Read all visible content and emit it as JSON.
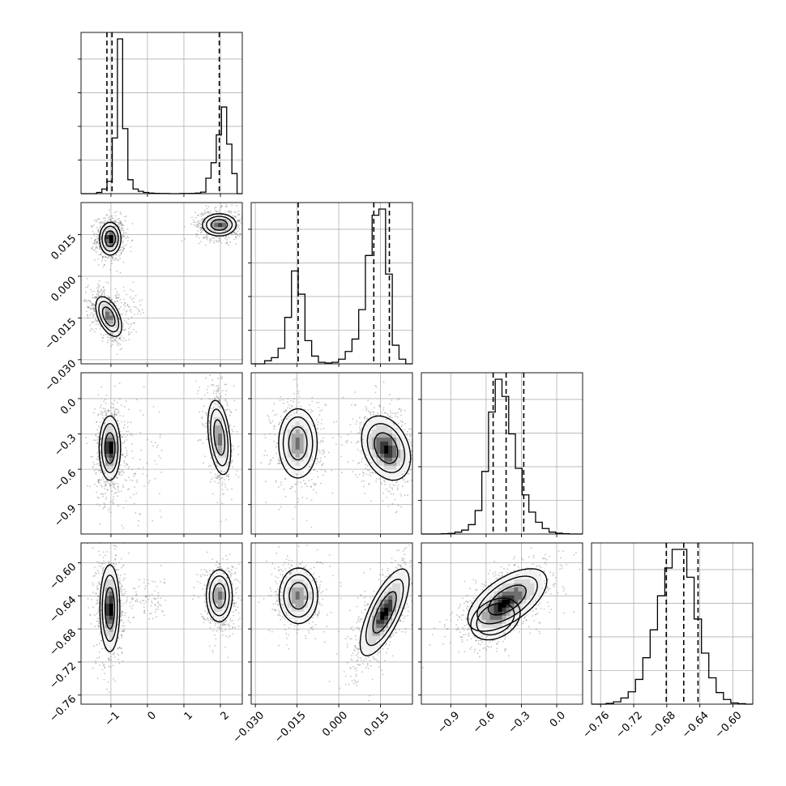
{
  "colors": {
    "ink": "#000000",
    "grid": "#b0b0b0",
    "background": "#ffffff",
    "shade_ramp": [
      "#f2f2f2",
      "#d9d9d9",
      "#a8a8a8",
      "#6e6e6e",
      "#383838",
      "#000000"
    ]
  },
  "chart_data": {
    "type": "corner",
    "grid": true,
    "parameters": [
      {
        "ticks": [
          -1,
          0,
          1,
          2
        ],
        "tick_labels": [
          "−1",
          "0",
          "1",
          "2"
        ],
        "range": [
          -1.82,
          2.6
        ],
        "quantiles": [
          -1.11,
          -0.97,
          1.97
        ],
        "histogram": [
          0,
          0,
          0,
          8,
          30,
          80,
          360,
          1000,
          420,
          90,
          30,
          15,
          8,
          4,
          2,
          1,
          1,
          0,
          0,
          1,
          1,
          2,
          4,
          10,
          100,
          200,
          380,
          560,
          320,
          130,
          0
        ]
      },
      {
        "ticks": [
          -0.03,
          -0.015,
          0.0,
          0.015
        ],
        "tick_labels": [
          "−0.030",
          "−0.015",
          "0.000",
          "0.015"
        ],
        "range": [
          -0.0315,
          0.0265
        ],
        "quantiles": [
          -0.0146,
          0.0126,
          0.0182
        ],
        "histogram": [
          0,
          0,
          20,
          40,
          100,
          300,
          600,
          450,
          150,
          50,
          10,
          5,
          10,
          30,
          80,
          160,
          350,
          700,
          960,
          1000,
          580,
          120,
          30,
          0
        ]
      },
      {
        "ticks": [
          -0.9,
          -0.6,
          -0.3,
          0.0
        ],
        "tick_labels": [
          "−0.9",
          "−0.6",
          "−0.3",
          "0.0"
        ],
        "range": [
          -1.15,
          0.22
        ],
        "quantiles": [
          -0.54,
          -0.43,
          -0.28
        ],
        "histogram": [
          0,
          0,
          0,
          2,
          4,
          12,
          25,
          60,
          150,
          400,
          780,
          990,
          880,
          640,
          420,
          250,
          140,
          75,
          35,
          12,
          5,
          2,
          0,
          0
        ]
      },
      {
        "ticks": [
          -0.76,
          -0.72,
          -0.68,
          -0.64,
          -0.6
        ],
        "tick_labels": [
          "−0.76",
          "−0.72",
          "−0.68",
          "−0.64",
          "−0.60"
        ],
        "range": [
          -0.771,
          -0.576
        ],
        "quantiles": [
          -0.6806,
          -0.6595,
          -0.6422
        ],
        "histogram": [
          0,
          0,
          5,
          15,
          40,
          80,
          160,
          300,
          480,
          700,
          880,
          1000,
          1000,
          820,
          550,
          330,
          170,
          75,
          30,
          8,
          3,
          0
        ]
      }
    ],
    "pair_panels": [
      {
        "row": 1,
        "col": 0,
        "peaks": [
          {
            "x": -1.02,
            "y": 0.0135,
            "sx": 0.14,
            "sy": 0.0028,
            "r": 0,
            "w": 1.0
          },
          {
            "x": -1.06,
            "y": -0.0145,
            "sx": 0.17,
            "sy": 0.0034,
            "r": -0.5,
            "w": 0.75
          },
          {
            "x": 1.97,
            "y": 0.0185,
            "sx": 0.22,
            "sy": 0.0019,
            "r": 0,
            "w": 0.85
          }
        ],
        "scatter_trails": [
          [
            -0.9,
            -0.012,
            0.8,
            0.004
          ]
        ]
      },
      {
        "row": 2,
        "col": 0,
        "peaks": [
          {
            "x": -1.03,
            "y": -0.42,
            "sx": 0.14,
            "sy": 0.13,
            "r": 0,
            "w": 1.0
          },
          {
            "x": 1.97,
            "y": -0.33,
            "sx": 0.15,
            "sy": 0.15,
            "r": -0.35,
            "w": 0.75
          }
        ],
        "scatter_trails": [
          [
            -0.5,
            -0.6,
            0.9,
            0.25
          ]
        ]
      },
      {
        "row": 2,
        "col": 1,
        "peaks": [
          {
            "x": -0.0147,
            "y": -0.38,
            "sx": 0.0033,
            "sy": 0.14,
            "r": 0,
            "w": 0.75
          },
          {
            "x": 0.017,
            "y": -0.42,
            "sx": 0.0042,
            "sy": 0.13,
            "r": -0.3,
            "w": 1.0
          }
        ],
        "scatter_trails": []
      },
      {
        "row": 3,
        "col": 0,
        "peaks": [
          {
            "x": -1.03,
            "y": -0.655,
            "sx": 0.13,
            "sy": 0.025,
            "r": 0,
            "w": 1.0
          },
          {
            "x": 1.97,
            "y": -0.64,
            "sx": 0.17,
            "sy": 0.015,
            "r": 0,
            "w": 0.75
          }
        ],
        "scatter_trails": [
          [
            -0.4,
            -0.645,
            0.9,
            0.012
          ]
        ]
      },
      {
        "row": 3,
        "col": 1,
        "peaks": [
          {
            "x": -0.0145,
            "y": -0.64,
            "sx": 0.0033,
            "sy": 0.016,
            "r": 0,
            "w": 0.75
          },
          {
            "x": 0.0165,
            "y": -0.66,
            "sx": 0.0042,
            "sy": 0.025,
            "r": 0.72,
            "w": 1.0
          }
        ],
        "scatter_trails": []
      },
      {
        "row": 3,
        "col": 2,
        "peaks": [
          {
            "x": -0.42,
            "y": -0.645,
            "sx": 0.16,
            "sy": 0.018,
            "r": 0.6,
            "w": 1.0
          },
          {
            "x": -0.52,
            "y": -0.668,
            "sx": 0.1,
            "sy": 0.012,
            "r": 0.3,
            "w": 0.35
          }
        ],
        "scatter_trails": []
      }
    ]
  }
}
